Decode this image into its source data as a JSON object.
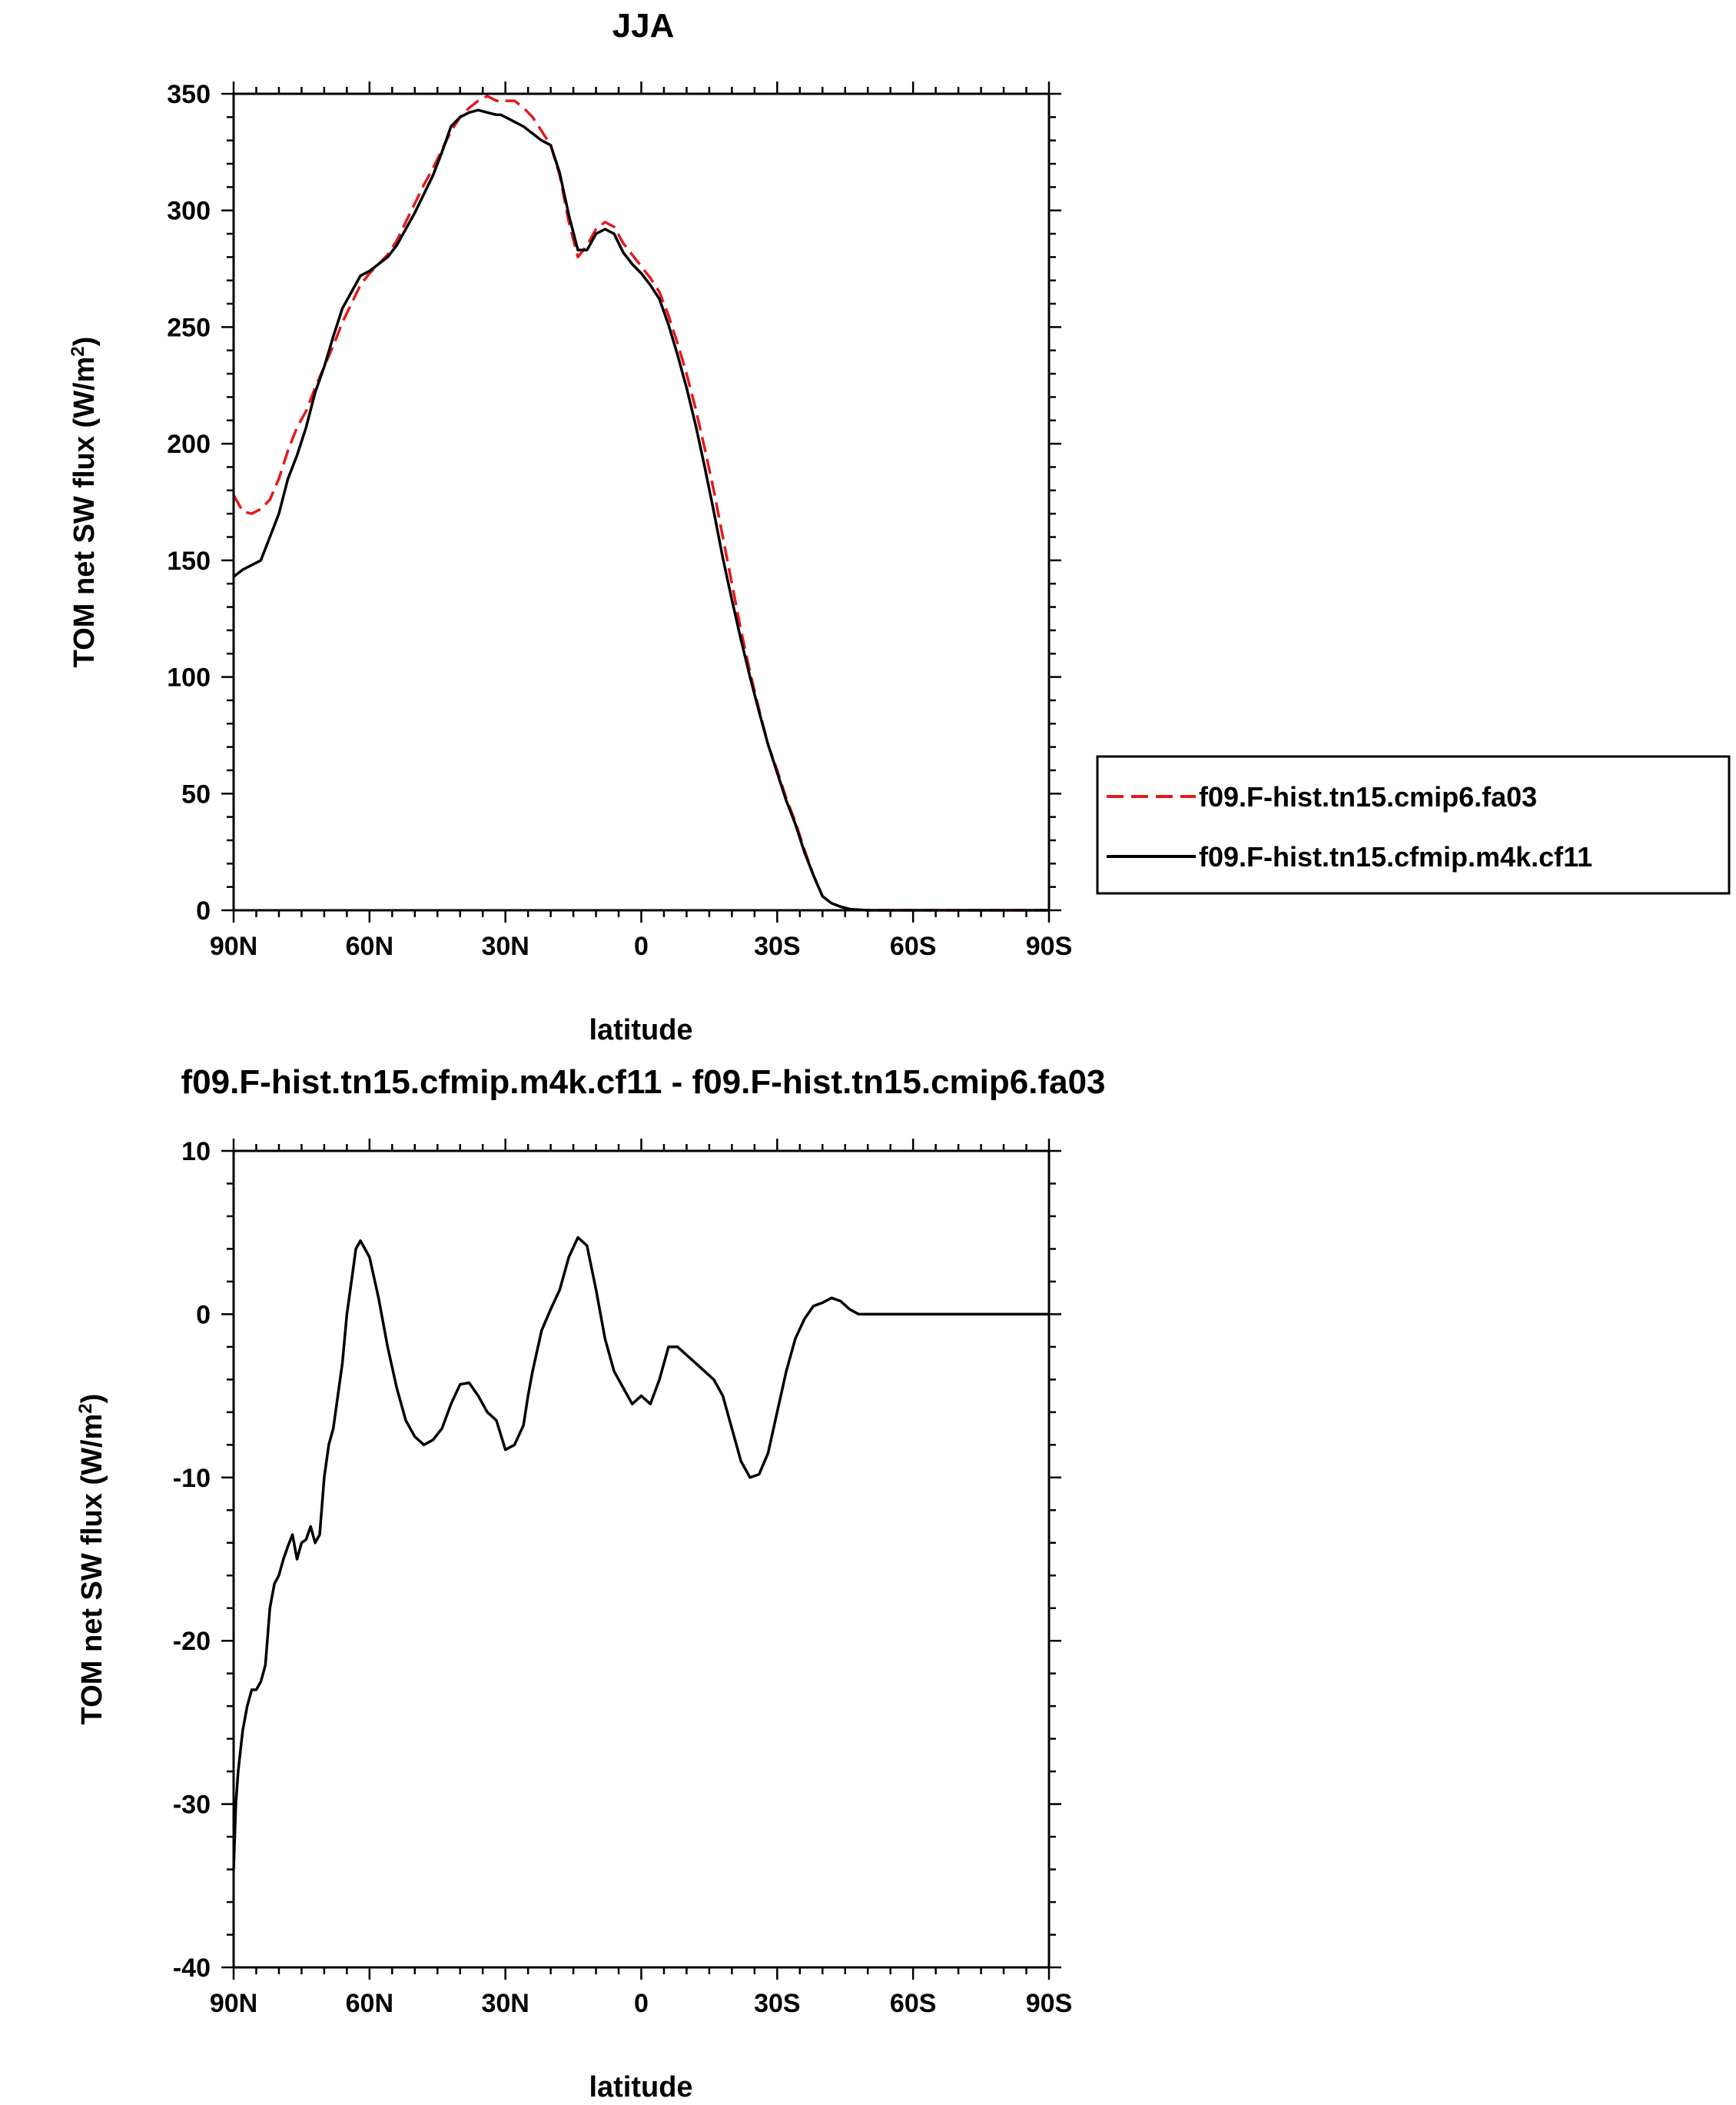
{
  "chart_data": [
    {
      "type": "line",
      "title": "JJA",
      "xlabel": "latitude",
      "ylabel": "TOM net SW flux (W/m",
      "ylabel_sup": "2",
      "ylabel_end": ")",
      "xlim": [
        90,
        -90
      ],
      "ylim": [
        0,
        350
      ],
      "xticks": [
        90,
        60,
        30,
        0,
        -30,
        -60,
        -90
      ],
      "xtick_labels": [
        "90N",
        "60N",
        "30N",
        "0",
        "30S",
        "60S",
        "90S"
      ],
      "yticks": [
        0,
        50,
        100,
        150,
        200,
        250,
        300,
        350
      ],
      "ytick_labels": [
        "0",
        "50",
        "100",
        "150",
        "200",
        "250",
        "300",
        "350"
      ],
      "legend_position": "right",
      "series": [
        {
          "name": "f09.F-hist.tn15.cmip6.fa03",
          "color": "#e41a1c",
          "dash": "dashed",
          "x": [
            90,
            88,
            86,
            84,
            82,
            80,
            78,
            76,
            74,
            72,
            70,
            68,
            66,
            64,
            62,
            60,
            58,
            56,
            54,
            52,
            50,
            48,
            46,
            44,
            42,
            40,
            38,
            36,
            34,
            32,
            31,
            30,
            28,
            26,
            24,
            22,
            20,
            18,
            16,
            14,
            12,
            10,
            8,
            6,
            4,
            2,
            0,
            -2,
            -4,
            -6,
            -8,
            -10,
            -12,
            -14,
            -16,
            -18,
            -20,
            -22,
            -24,
            -26,
            -28,
            -30,
            -32,
            -34,
            -36,
            -38,
            -40,
            -42,
            -44,
            -46,
            -48,
            -50,
            -52,
            -54,
            -56,
            -58,
            -60,
            -62,
            -64,
            -66,
            -68,
            -70,
            -75,
            -80,
            -85,
            -90
          ],
          "values": [
            178,
            171,
            170,
            172,
            176,
            185,
            197,
            207,
            214,
            224,
            233,
            242,
            252,
            260,
            268,
            273,
            277,
            281,
            287,
            295,
            303,
            311,
            318,
            326,
            334,
            340,
            344,
            347,
            349,
            347,
            347,
            347,
            347,
            344,
            340,
            334,
            328,
            315,
            295,
            280,
            285,
            292,
            295,
            293,
            286,
            281,
            276,
            271,
            265,
            255,
            243,
            230,
            215,
            198,
            180,
            160,
            140,
            120,
            102,
            86,
            71,
            60,
            48,
            38,
            26,
            15,
            6,
            3,
            1.5,
            0.5,
            0.2,
            0,
            0,
            0,
            0,
            0,
            0,
            0,
            0,
            0,
            0,
            0,
            0,
            0,
            0,
            0
          ]
        },
        {
          "name": "f09.F-hist.tn15.cfmip.m4k.cf11",
          "color": "#000000",
          "dash": "solid",
          "x": [
            90,
            88,
            86,
            84,
            82,
            80,
            78,
            76,
            74,
            72,
            70,
            68,
            66,
            64,
            62,
            60,
            58,
            56,
            54,
            52,
            50,
            48,
            46,
            44,
            42,
            40,
            38,
            36,
            34,
            32,
            31,
            30,
            28,
            26,
            24,
            22,
            20,
            18,
            16,
            14,
            12,
            10,
            8,
            6,
            4,
            2,
            0,
            -2,
            -4,
            -6,
            -8,
            -10,
            -12,
            -14,
            -16,
            -18,
            -20,
            -22,
            -24,
            -26,
            -28,
            -30,
            -32,
            -34,
            -36,
            -38,
            -40,
            -42,
            -44,
            -46,
            -48,
            -50,
            -52,
            -54,
            -56,
            -58,
            -60,
            -62,
            -64,
            -66,
            -68,
            -70,
            -75,
            -80,
            -85,
            -90
          ],
          "values": [
            143,
            146,
            148,
            150,
            160,
            170,
            185,
            195,
            207,
            222,
            233,
            246,
            258,
            265,
            272,
            274,
            277,
            280,
            285,
            292,
            299,
            307,
            315,
            325,
            336,
            340,
            342,
            343,
            342,
            341,
            341,
            340,
            338,
            336,
            333,
            330,
            328,
            316,
            298,
            283,
            283,
            290,
            292,
            290,
            282,
            277,
            273,
            268,
            262,
            251,
            238,
            224,
            208,
            190,
            171,
            151,
            133,
            116,
            100,
            85,
            71,
            59,
            47,
            37,
            25,
            15,
            6,
            3,
            1.5,
            0.5,
            0.2,
            0,
            0,
            0,
            0,
            0,
            0,
            0,
            0,
            0,
            0,
            0,
            0,
            0,
            0,
            0
          ]
        }
      ]
    },
    {
      "type": "line",
      "title": "f09.F-hist.tn15.cfmip.m4k.cf11 - f09.F-hist.tn15.cmip6.fa03",
      "xlabel": "latitude",
      "ylabel": "TOM net SW flux (W/m",
      "ylabel_sup": "2",
      "ylabel_end": ")",
      "xlim": [
        90,
        -90
      ],
      "ylim": [
        -40,
        10
      ],
      "xticks": [
        90,
        60,
        30,
        0,
        -30,
        -60,
        -90
      ],
      "xtick_labels": [
        "90N",
        "60N",
        "30N",
        "0",
        "30S",
        "60S",
        "90S"
      ],
      "yticks": [
        -40,
        -30,
        -20,
        -10,
        0,
        10
      ],
      "ytick_labels": [
        "-40",
        "-30",
        "-20",
        "-10",
        "0",
        "10"
      ],
      "series": [
        {
          "color": "#000000",
          "dash": "solid",
          "x": [
            90,
            89.5,
            89,
            88,
            87,
            86,
            85,
            84,
            83,
            82,
            81,
            80,
            79,
            78,
            77,
            76,
            75,
            74,
            73,
            72,
            71,
            70,
            69,
            68,
            67,
            66,
            65,
            64,
            63,
            62,
            61,
            60,
            58,
            56,
            54,
            52,
            50,
            48,
            46,
            44,
            42,
            40,
            38,
            36,
            34,
            32,
            30,
            28,
            26,
            25,
            24,
            22,
            20,
            18,
            16,
            14,
            12,
            10,
            8,
            6,
            4,
            2,
            0,
            -2,
            -4,
            -6,
            -8,
            -10,
            -12,
            -14,
            -16,
            -18,
            -20,
            -22,
            -24,
            -26,
            -28,
            -30,
            -32,
            -34,
            -36,
            -38,
            -40,
            -42,
            -44,
            -46,
            -48,
            -50,
            -52,
            -54,
            -56,
            -58,
            -60,
            -62,
            -64,
            -66,
            -68,
            -70,
            -75,
            -80,
            -85,
            -90
          ],
          "values": [
            -34,
            -30,
            -28,
            -25.5,
            -24,
            -23,
            -23,
            -22.5,
            -21.5,
            -18,
            -16.5,
            -16,
            -15,
            -14.2,
            -13.5,
            -15,
            -14,
            -13.8,
            -13,
            -14,
            -13.5,
            -10,
            -8,
            -7,
            -5,
            -3,
            0,
            2,
            4,
            4.5,
            4,
            3.5,
            1,
            -2,
            -4.5,
            -6.5,
            -7.5,
            -8,
            -7.7,
            -7,
            -5.5,
            -4.3,
            -4.2,
            -5,
            -6,
            -6.5,
            -8.3,
            -8,
            -6.8,
            -5,
            -3.5,
            -1,
            0.3,
            1.5,
            3.5,
            4.7,
            4.2,
            1.5,
            -1.5,
            -3.5,
            -4.5,
            -5.5,
            -5,
            -5.5,
            -4,
            -2,
            -2,
            -2.5,
            -3,
            -3.5,
            -4,
            -5,
            -7,
            -9,
            -10,
            -9.8,
            -8.5,
            -6,
            -3.5,
            -1.5,
            -0.3,
            0.5,
            0.7,
            1,
            0.8,
            0.3,
            0,
            0,
            0,
            0,
            0,
            0,
            0,
            0,
            0,
            0,
            0,
            0,
            0,
            0,
            0,
            0
          ]
        }
      ]
    }
  ]
}
